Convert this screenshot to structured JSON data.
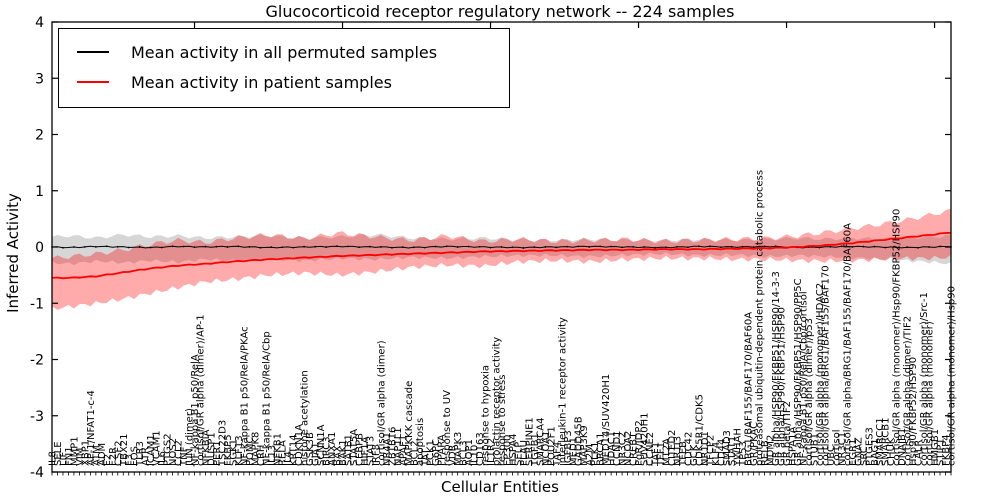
{
  "title": "Glucocorticoid receptor regulatory network -- 224 samples",
  "axes": {
    "ylabel": "Inferred Activity",
    "xlabel": "Cellular Entities",
    "ylim": [
      -4,
      4
    ],
    "y_ticks": [
      4,
      3,
      2,
      1,
      0,
      -1,
      -2,
      -3,
      -4
    ]
  },
  "legend": [
    {
      "label": "Mean activity in all permuted samples",
      "color": "#000000"
    },
    {
      "label": "Mean activity in patient samples",
      "color": "#ff0000"
    }
  ],
  "colors": {
    "permuted_line": "#000000",
    "patient_line": "#ff0000",
    "permuted_band_fill": "#000000",
    "permuted_band_opacity": 0.16,
    "patient_band_fill": "#ff0000",
    "patient_band_opacity": 0.33,
    "axis": "#000000",
    "background": "#ffffff"
  },
  "chart_data": {
    "type": "line",
    "title": "Glucocorticoid receptor regulatory network -- 224 samples",
    "xlabel": "Cellular Entities",
    "ylabel": "Inferred Activity",
    "ylim": [
      -4,
      4
    ],
    "n_entities": 165,
    "legend_position": "upper left",
    "grid": false,
    "categories": [
      "IL8",
      "SELE",
      "LIF",
      "FN1",
      "MMP1",
      "VIM",
      "XBP1",
      "AP-1/NFAT1-c-4",
      "ATM",
      "ADM",
      "F2",
      "F2R",
      "CSF2",
      "TBX21",
      "F3",
      "FOS",
      "TLR3",
      "ATR",
      "ICAM1",
      "VCAM1",
      "IL6",
      "PTGS2",
      "NOS2",
      "CCL2",
      "TNF",
      "JUN (dimer)",
      "NF-kappa B1 p50/RelA",
      "cortisol/GR alpha (dimer)/AP-1",
      "NFKBIA",
      "DUSP1",
      "PER1",
      "TSC22D3",
      "FKBP5",
      "SGK1",
      "KLF13",
      "NF-kappa B1 p50/RelA/PKAc",
      "POMC",
      "MAPK8",
      "CRH",
      "NF-kappa B1 p50/RelA/Cbp",
      "IL13",
      "NFKB1",
      "RELA",
      "IL4",
      "KRT14",
      "CDKN1A",
      "histone acetylation",
      "GSK3B",
      "GJA1",
      "SCNN1A",
      "BIRC3",
      "ANXA1",
      "BAX",
      "BAK1",
      "SATB1",
      "STAT5A",
      "CEBPB",
      "HIF1A",
      "STAT3",
      "IRF8",
      "cortisol/GR alpha (dimer)",
      "NR4A1",
      "ZBTB16",
      "NAP1L1",
      "APAF1",
      "MAPKKK cascade",
      "BCL2",
      "apoptosis",
      "TAT",
      "PCK1",
      "G6PC",
      "PPARA",
      "response to UV",
      "VDR",
      "MAPK3",
      "BCL3",
      "AQP1",
      "IL10",
      "CD163",
      "response to hypoxia",
      "IL1R2",
      "prolactin receptor activity",
      "response to stress",
      "EP300",
      "HSPA4",
      "SELP",
      "PLAU",
      "SERPINE1",
      "TGFB1",
      "SMARCA4",
      "NCOA1",
      "POU2F1",
      "TAF4",
      "interleukin-1 receptor activity",
      "IGFBP3",
      "MED1",
      "GADD45B",
      "MAP3K9",
      "A2M",
      "PLK1",
      "BRCA1",
      "MED14/SUV420H1",
      "HDAC1",
      "CCND1",
      "NR3C2",
      "NCOA2",
      "CREB1",
      "PgR/JDP2",
      "SUV420H1",
      "CCNE2",
      "TAF1",
      "TFF1",
      "MT2A",
      "CITED2",
      "NR1I3",
      "TFEB",
      "CDC42",
      "GCK",
      "CDK5R1/CDK5",
      "NR1D1",
      "TFCP2",
      "KLF4",
      "CD44",
      "SMAD3",
      "STAT1",
      "YWHAH",
      "TP53",
      "BRG1/BAF155/BAF170/BAF60A",
      "GR/PKAC",
      "proteasomal ubiquitin-dependent protein catabolic process",
      "RELB",
      "MDM2",
      "GR alpha/HSP90/FKBP51/HSP90/14-3-3",
      "GR alpha/HSP90/FKBP51/HSP90",
      "GR beta/TIF2",
      "HSPA1A",
      "GR alpha/HSP90/FKBP51/HSP90/PP5C",
      "NF-kappa B1 p50/RelA/Cbp/cortisol",
      "cortisol/GR alpha (dimer)/p53",
      "STUB1",
      "cortisol/GR alpha (monomer)/HDAC2",
      "cortisol/GR alpha/BRG1/BAF155/BAF170",
      "UBC",
      "cortisol",
      "NR3C1",
      "cortisol/GR alpha/BRG1/BAF155/BAF170/BAF60A",
      "EGR1",
      "GNAZ",
      "SRC",
      "PTGES3",
      "BAG1",
      "SMARCC1",
      "SMARCB1",
      "CHUK",
      "cortisol/GR alpha (monomer)/Hsp90/FKBP52/HSP90",
      "DNAJB1",
      "cortisol/GR alpha (dimer)/TIF2",
      "Hsp90/FKBP52/HSP90",
      "CALR",
      "cortisol/GR alpha (monomer)/Src-1",
      "cortisol/GR alpha (monomer)",
      "HMGB1",
      "STIP1",
      "FKBP4",
      "cortisol/GR alpha (monomer)/Hsp90"
    ],
    "anchors_x": [
      0.0,
      0.02,
      0.05,
      0.08,
      0.11,
      0.14,
      0.17,
      0.2,
      0.24,
      0.28,
      0.32,
      0.36,
      0.4,
      0.44,
      0.48,
      0.52,
      0.56,
      0.6,
      0.64,
      0.68,
      0.72,
      0.76,
      0.8,
      0.83,
      0.86,
      0.89,
      0.92,
      0.95,
      0.98,
      1.0
    ],
    "series": [
      {
        "name": "Mean activity in all permuted samples",
        "color": "#000000",
        "values": [
          0.0,
          -0.01,
          0.01,
          0.0,
          -0.01,
          0.01,
          0.0,
          0.01,
          -0.01,
          0.0,
          0.01,
          0.0,
          -0.01,
          0.01,
          0.0,
          -0.01,
          0.0,
          0.01,
          0.0,
          -0.01,
          0.01,
          0.0,
          0.01,
          -0.01,
          0.0,
          0.01,
          0.0,
          -0.01,
          0.0,
          0.01
        ],
        "band_upper": [
          0.18,
          0.2,
          0.16,
          0.22,
          0.18,
          0.2,
          0.16,
          0.18,
          0.2,
          0.16,
          0.18,
          0.22,
          0.16,
          0.14,
          0.16,
          0.13,
          0.12,
          0.14,
          0.12,
          0.12,
          0.14,
          0.12,
          0.14,
          0.16,
          0.14,
          0.16,
          0.14,
          0.16,
          0.18,
          0.2
        ],
        "band_lower": [
          -0.28,
          -0.3,
          -0.25,
          -0.28,
          -0.24,
          -0.27,
          -0.22,
          -0.24,
          -0.22,
          -0.24,
          -0.2,
          -0.22,
          -0.18,
          -0.2,
          -0.17,
          -0.15,
          -0.15,
          -0.17,
          -0.14,
          -0.12,
          -0.15,
          -0.14,
          -0.17,
          -0.15,
          -0.17,
          -0.19,
          -0.21,
          -0.24,
          -0.27,
          -0.3
        ]
      },
      {
        "name": "Mean activity in patient samples",
        "color": "#ff0000",
        "values": [
          -0.55,
          -0.55,
          -0.52,
          -0.45,
          -0.38,
          -0.33,
          -0.3,
          -0.26,
          -0.22,
          -0.19,
          -0.16,
          -0.14,
          -0.12,
          -0.1,
          -0.08,
          -0.07,
          -0.06,
          -0.05,
          -0.05,
          -0.04,
          -0.04,
          -0.03,
          -0.02,
          0.0,
          0.03,
          0.07,
          0.12,
          0.17,
          0.22,
          0.26
        ],
        "band_upper": [
          -0.2,
          -0.17,
          -0.12,
          -0.05,
          0.05,
          0.12,
          0.08,
          0.15,
          0.22,
          0.15,
          0.25,
          0.18,
          0.12,
          0.2,
          0.1,
          0.14,
          0.1,
          0.12,
          0.14,
          0.1,
          0.12,
          0.14,
          0.16,
          0.2,
          0.26,
          0.33,
          0.4,
          0.48,
          0.58,
          0.65
        ],
        "band_lower": [
          -1.1,
          -1.06,
          -1.0,
          -0.92,
          -0.82,
          -0.72,
          -0.62,
          -0.58,
          -0.5,
          -0.46,
          -0.5,
          -0.44,
          -0.36,
          -0.32,
          -0.34,
          -0.26,
          -0.24,
          -0.26,
          -0.22,
          -0.2,
          -0.2,
          -0.22,
          -0.22,
          -0.24,
          -0.25,
          -0.24,
          -0.22,
          -0.2,
          -0.2,
          -0.18
        ]
      }
    ]
  }
}
